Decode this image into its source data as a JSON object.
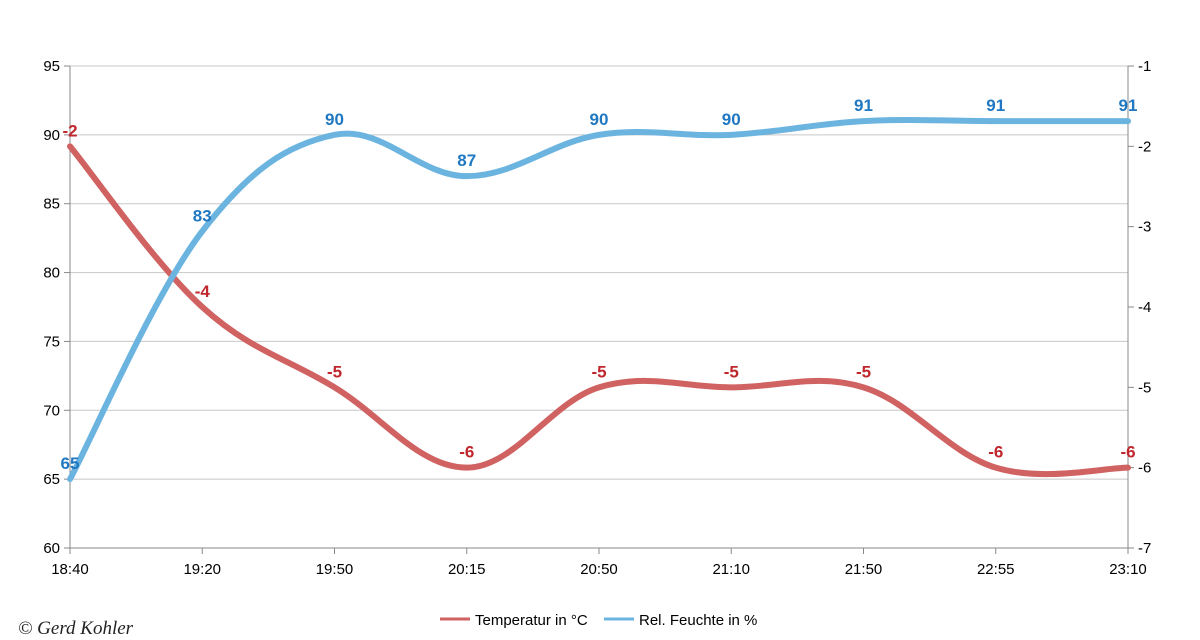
{
  "chart_data": {
    "type": "line",
    "categories": [
      "18:40",
      "19:20",
      "19:50",
      "20:15",
      "20:50",
      "21:10",
      "21:50",
      "22:55",
      "23:10"
    ],
    "y_left": {
      "min": 60,
      "max": 95,
      "step": 5,
      "ticks": [
        "60",
        "65",
        "70",
        "75",
        "80",
        "85",
        "90",
        "95"
      ]
    },
    "y_right": {
      "min": -7,
      "max": -1,
      "step": 1,
      "ticks": [
        "-7",
        "-6",
        "-5",
        "-4",
        "-3",
        "-2",
        "-1"
      ]
    },
    "grid": "horizontal",
    "legend_position": "bottom",
    "series": [
      {
        "name": "Temperatur in °C",
        "axis": "right",
        "color": "#d06262",
        "values": [
          -2,
          -4,
          -5,
          -6,
          -5,
          -5,
          -5,
          -6,
          -6
        ],
        "labels": [
          "-2",
          "-4",
          "-5",
          "-6",
          "-5",
          "-5",
          "-5",
          "-6",
          "-6"
        ]
      },
      {
        "name": "Rel. Feuchte in %",
        "axis": "left",
        "color": "#6cb4e0",
        "label_color": "#1f78c1",
        "values": [
          65,
          83,
          90,
          87,
          90,
          90,
          91,
          91,
          91
        ],
        "labels": [
          "65",
          "83",
          "90",
          "87",
          "90",
          "90",
          "91",
          "91",
          "91"
        ]
      }
    ]
  },
  "credit": "© Gerd Kohler"
}
